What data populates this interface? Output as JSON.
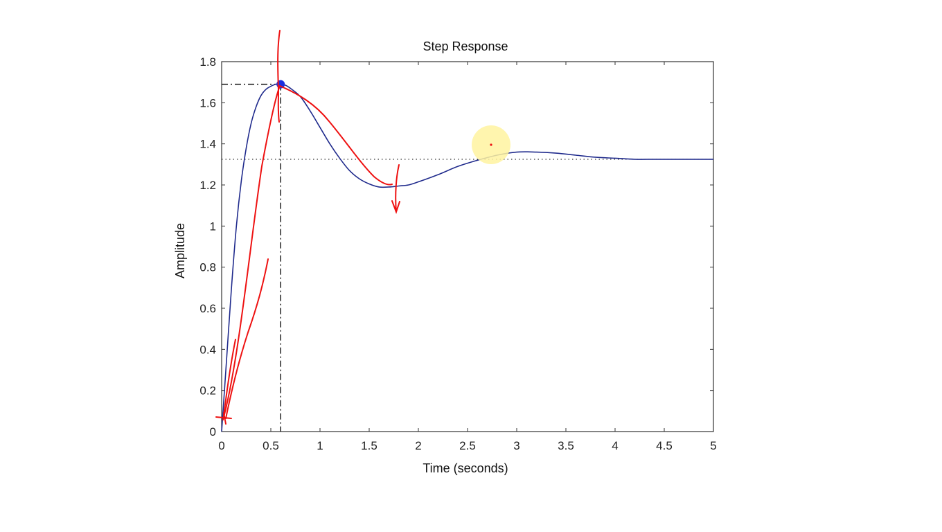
{
  "chart_data": {
    "type": "line",
    "title": "Step Response",
    "xlabel": "Time (seconds)",
    "ylabel": "Amplitude",
    "xlim": [
      0,
      5
    ],
    "ylim": [
      0,
      1.8
    ],
    "xticks": [
      0,
      0.5,
      1,
      1.5,
      2,
      2.5,
      3,
      3.5,
      4,
      4.5,
      5
    ],
    "xtick_labels": [
      "0",
      "0.5",
      "1",
      "1.5",
      "2",
      "2.5",
      "3",
      "3.5",
      "4",
      "4.5",
      "5"
    ],
    "yticks": [
      0,
      0.2,
      0.4,
      0.6,
      0.8,
      1,
      1.2,
      1.4,
      1.6,
      1.8
    ],
    "ytick_labels": [
      "0",
      "0.2",
      "0.4",
      "0.6",
      "0.8",
      "1",
      "1.2",
      "1.4",
      "1.6",
      "1.8"
    ],
    "grid": false,
    "series": [
      {
        "color": "#1f2a8c",
        "x": [
          0,
          0.05,
          0.1,
          0.15,
          0.2,
          0.25,
          0.3,
          0.35,
          0.4,
          0.45,
          0.5,
          0.55,
          0.6,
          0.65,
          0.7,
          0.8,
          0.9,
          1.0,
          1.1,
          1.2,
          1.3,
          1.4,
          1.5,
          1.6,
          1.7,
          1.8,
          1.9,
          2.0,
          2.2,
          2.4,
          2.6,
          2.8,
          3.0,
          3.2,
          3.4,
          3.6,
          3.8,
          4.0,
          4.2,
          4.4,
          4.6,
          4.8,
          5.0
        ],
        "y": [
          0,
          0.35,
          0.7,
          1.0,
          1.22,
          1.38,
          1.5,
          1.58,
          1.635,
          1.665,
          1.68,
          1.69,
          1.69,
          1.685,
          1.67,
          1.63,
          1.56,
          1.48,
          1.4,
          1.33,
          1.27,
          1.23,
          1.205,
          1.19,
          1.19,
          1.195,
          1.2,
          1.215,
          1.25,
          1.29,
          1.32,
          1.345,
          1.36,
          1.36,
          1.355,
          1.345,
          1.335,
          1.33,
          1.325,
          1.325,
          1.325,
          1.325,
          1.325
        ]
      }
    ],
    "steady_state_value": 1.325,
    "peak": {
      "x": 0.6,
      "y": 1.69
    },
    "colors": {
      "response": "#1f2a8c",
      "peak_marker": "#1c2ee0",
      "reference_lines": "#111111",
      "pen_annotation": "#ee1111",
      "cursor_highlight": "#fff3a0"
    }
  }
}
